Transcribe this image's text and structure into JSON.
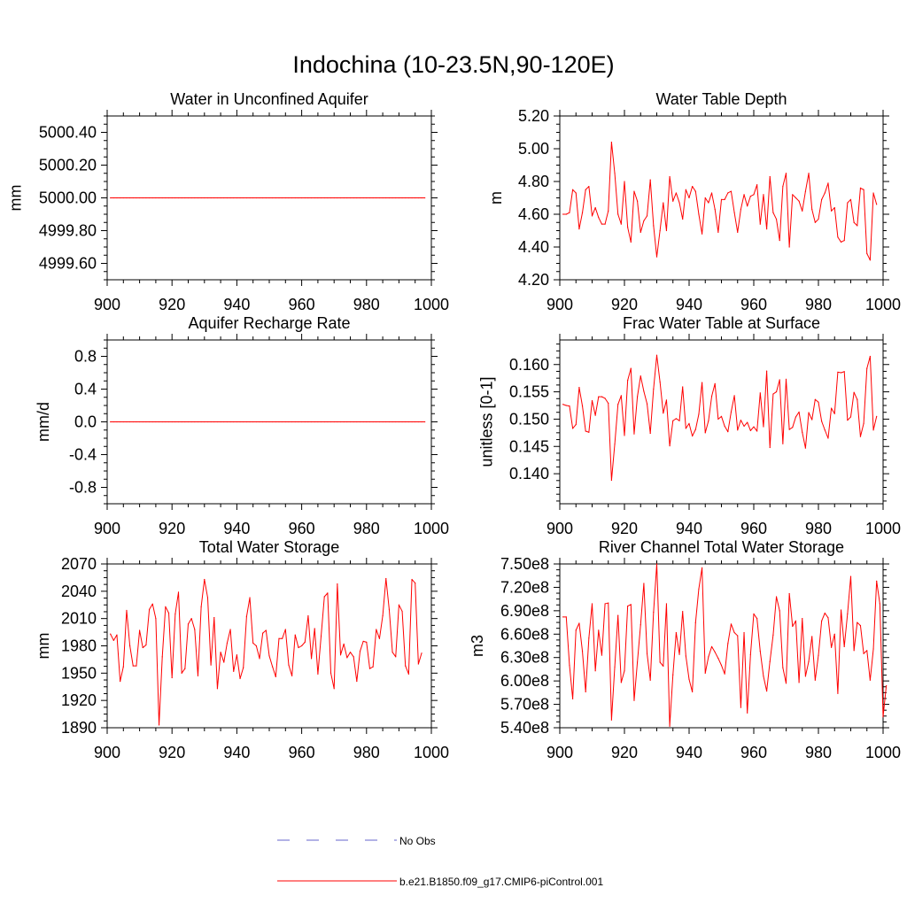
{
  "title": "Indochina (10-23.5N,90-120E)",
  "colors": {
    "model": "#ff0000",
    "obs": "#6666cc",
    "axis": "#000000"
  },
  "legend": {
    "items": [
      {
        "label": "No Obs",
        "style": "dashed",
        "color": "#6666cc"
      },
      {
        "label": "b.e21.B1850.f09_g17.CMIP6-piControl.001",
        "style": "solid",
        "color": "#ff0000"
      }
    ]
  },
  "chart_data": [
    {
      "type": "line",
      "title": "Water in Unconfined Aquifer",
      "ylabel": "mm",
      "xlim": [
        900,
        1000
      ],
      "ylim": [
        4999.5,
        5000.5
      ],
      "xticks": [
        900,
        920,
        940,
        960,
        980,
        1000
      ],
      "yticks": [
        4999.6,
        4999.8,
        5000.0,
        5000.2,
        5000.4
      ],
      "ytick_labels": [
        "4999.60",
        "4999.80",
        "5000.00",
        "5000.20",
        "5000.40"
      ],
      "x_start": 901,
      "values": [
        5000,
        5000,
        5000,
        5000,
        5000,
        5000,
        5000,
        5000,
        5000,
        5000,
        5000,
        5000,
        5000,
        5000,
        5000,
        5000,
        5000,
        5000,
        5000,
        5000,
        5000,
        5000,
        5000,
        5000,
        5000,
        5000,
        5000,
        5000,
        5000,
        5000,
        5000,
        5000,
        5000,
        5000,
        5000,
        5000,
        5000,
        5000,
        5000,
        5000,
        5000,
        5000,
        5000,
        5000,
        5000,
        5000,
        5000,
        5000,
        5000,
        5000,
        5000,
        5000,
        5000,
        5000,
        5000,
        5000,
        5000,
        5000,
        5000,
        5000,
        5000,
        5000,
        5000,
        5000,
        5000,
        5000,
        5000,
        5000,
        5000,
        5000,
        5000,
        5000,
        5000,
        5000,
        5000,
        5000,
        5000,
        5000,
        5000,
        5000,
        5000,
        5000,
        5000,
        5000,
        5000,
        5000,
        5000,
        5000,
        5000,
        5000,
        5000,
        5000,
        5000,
        5000,
        5000,
        5000,
        5000,
        5000
      ]
    },
    {
      "type": "line",
      "title": "Water Table Depth",
      "ylabel": "m",
      "xlim": [
        900,
        1000
      ],
      "ylim": [
        4.2,
        5.2
      ],
      "xticks": [
        900,
        920,
        940,
        960,
        980,
        1000
      ],
      "yticks": [
        4.2,
        4.4,
        4.6,
        4.8,
        5.0,
        5.2
      ],
      "ytick_labels": [
        "4.20",
        "4.40",
        "4.60",
        "4.80",
        "5.00",
        "5.20"
      ],
      "x_start": 901,
      "values": [
        4.6,
        4.6,
        4.61,
        4.75,
        4.73,
        4.51,
        4.61,
        4.75,
        4.77,
        4.59,
        4.64,
        4.58,
        4.54,
        4.54,
        4.62,
        5.04,
        4.85,
        4.6,
        4.54,
        4.8,
        4.52,
        4.43,
        4.74,
        4.68,
        4.49,
        4.56,
        4.59,
        4.81,
        4.53,
        4.34,
        4.5,
        4.67,
        4.5,
        4.83,
        4.68,
        4.73,
        4.67,
        4.57,
        4.75,
        4.7,
        4.77,
        4.74,
        4.6,
        4.48,
        4.7,
        4.67,
        4.73,
        4.63,
        4.49,
        4.69,
        4.69,
        4.73,
        4.74,
        4.61,
        4.49,
        4.63,
        4.72,
        4.65,
        4.71,
        4.72,
        4.78,
        4.54,
        4.72,
        4.51,
        4.83,
        4.61,
        4.57,
        4.44,
        4.77,
        4.85,
        4.4,
        4.72,
        4.7,
        4.68,
        4.62,
        4.74,
        4.85,
        4.63,
        4.55,
        4.57,
        4.69,
        4.73,
        4.79,
        4.62,
        4.64,
        4.46,
        4.43,
        4.44,
        4.67,
        4.69,
        4.55,
        4.53,
        4.76,
        4.75,
        4.36,
        4.32,
        4.73,
        4.66
      ]
    },
    {
      "type": "line",
      "title": "Aquifer Recharge Rate",
      "ylabel": "mm/d",
      "xlim": [
        900,
        1000
      ],
      "ylim": [
        -1.0,
        1.0
      ],
      "xticks": [
        900,
        920,
        940,
        960,
        980,
        1000
      ],
      "yticks": [
        -0.8,
        -0.4,
        0.0,
        0.4,
        0.8
      ],
      "ytick_labels": [
        "-0.8",
        "-0.4",
        "0.0",
        "0.4",
        "0.8"
      ],
      "x_start": 901,
      "values": [
        0,
        0,
        0,
        0,
        0,
        0,
        0,
        0,
        0,
        0,
        0,
        0,
        0,
        0,
        0,
        0,
        0,
        0,
        0,
        0,
        0,
        0,
        0,
        0,
        0,
        0,
        0,
        0,
        0,
        0,
        0,
        0,
        0,
        0,
        0,
        0,
        0,
        0,
        0,
        0,
        0,
        0,
        0,
        0,
        0,
        0,
        0,
        0,
        0,
        0,
        0,
        0,
        0,
        0,
        0,
        0,
        0,
        0,
        0,
        0,
        0,
        0,
        0,
        0,
        0,
        0,
        0,
        0,
        0,
        0,
        0,
        0,
        0,
        0,
        0,
        0,
        0,
        0,
        0,
        0,
        0,
        0,
        0,
        0,
        0,
        0,
        0,
        0,
        0,
        0,
        0,
        0,
        0,
        0,
        0,
        0,
        0,
        0
      ]
    },
    {
      "type": "line",
      "title": "Frac Water Table at Surface",
      "ylabel": "unitless [0-1]",
      "xlim": [
        900,
        1000
      ],
      "ylim": [
        0.1345,
        0.1645
      ],
      "xticks": [
        900,
        920,
        940,
        960,
        980,
        1000
      ],
      "yticks": [
        0.14,
        0.145,
        0.15,
        0.155,
        0.16
      ],
      "ytick_labels": [
        "0.140",
        "0.145",
        "0.150",
        "0.155",
        "0.160"
      ],
      "x_start": 901,
      "values": [
        0.1527,
        0.1525,
        0.1524,
        0.1483,
        0.149,
        0.1558,
        0.1524,
        0.1478,
        0.1476,
        0.1534,
        0.1507,
        0.1541,
        0.1541,
        0.1538,
        0.1529,
        0.1388,
        0.1454,
        0.1527,
        0.1543,
        0.147,
        0.1571,
        0.1593,
        0.1473,
        0.1541,
        0.1579,
        0.1551,
        0.1528,
        0.1474,
        0.1555,
        0.1617,
        0.1568,
        0.1511,
        0.1535,
        0.1451,
        0.1497,
        0.1501,
        0.1497,
        0.1559,
        0.1483,
        0.1492,
        0.1469,
        0.1481,
        0.1509,
        0.1567,
        0.1475,
        0.1497,
        0.1542,
        0.1565,
        0.15,
        0.1505,
        0.1487,
        0.1477,
        0.1513,
        0.1543,
        0.148,
        0.1498,
        0.1487,
        0.1494,
        0.1479,
        0.1486,
        0.1478,
        0.1548,
        0.1486,
        0.1588,
        0.1448,
        0.1546,
        0.155,
        0.1572,
        0.1455,
        0.1573,
        0.1481,
        0.1485,
        0.1504,
        0.1513,
        0.1476,
        0.1447,
        0.1512,
        0.1499,
        0.1536,
        0.1531,
        0.1496,
        0.148,
        0.1465,
        0.152,
        0.151,
        0.1586,
        0.1585,
        0.1587,
        0.1498,
        0.1504,
        0.1549,
        0.1536,
        0.1468,
        0.1492,
        0.1593,
        0.1615,
        0.148,
        0.1505
      ]
    },
    {
      "type": "line",
      "title": "Total Water Storage",
      "ylabel": "mm",
      "xlim": [
        900,
        1000
      ],
      "ylim": [
        1890,
        2070
      ],
      "xticks": [
        900,
        920,
        940,
        960,
        980,
        1000
      ],
      "yticks": [
        1890,
        1920,
        1950,
        1980,
        2010,
        2040,
        2070
      ],
      "ytick_labels": [
        "1890",
        "1920",
        "1950",
        "1980",
        "2010",
        "2040",
        "2070"
      ],
      "x_start": 901,
      "values": [
        1993,
        1986,
        1992,
        1941,
        1957,
        2019,
        1980,
        1958,
        1958,
        1997,
        1978,
        1981,
        2020,
        2026,
        2010,
        1893,
        1968,
        2023,
        2016,
        1945,
        2015,
        2039,
        1950,
        1955,
        2004,
        2010,
        1998,
        1947,
        2023,
        2053,
        2033,
        1959,
        2011,
        1933,
        1973,
        1962,
        1983,
        1998,
        1952,
        1970,
        1944,
        1956,
        2012,
        2033,
        1983,
        1980,
        1966,
        1994,
        1997,
        1969,
        1957,
        1946,
        1988,
        1988,
        1998,
        1959,
        1947,
        1992,
        1978,
        1980,
        1984,
        2013,
        1966,
        1999,
        1949,
        1991,
        2034,
        2038,
        1950,
        1933,
        2048,
        1970,
        1982,
        1967,
        1973,
        1968,
        1941,
        1974,
        1985,
        1984,
        1955,
        1957,
        1998,
        1988,
        2013,
        2054,
        2020,
        1973,
        1968,
        2025,
        2018,
        1958,
        1949,
        2053,
        2049,
        1960,
        1972
      ]
    },
    {
      "type": "line",
      "title": "River Channel Total Water Storage",
      "ylabel": "m3",
      "xlim": [
        900,
        1000
      ],
      "ylim": [
        540000000.0,
        750000000.0
      ],
      "xticks": [
        900,
        920,
        940,
        960,
        980,
        1000
      ],
      "yticks": [
        540000000.0,
        570000000.0,
        600000000.0,
        630000000.0,
        660000000.0,
        690000000.0,
        720000000.0,
        750000000.0
      ],
      "ytick_labels": [
        "5.40e8",
        "5.70e8",
        "6.00e8",
        "6.30e8",
        "6.60e8",
        "6.90e8",
        "7.20e8",
        "7.50e8"
      ],
      "x_start": 901,
      "values": [
        682000000.0,
        682000000.0,
        620000000.0,
        577000000.0,
        665000000.0,
        674000000.0,
        638000000.0,
        586000000.0,
        655000000.0,
        699000000.0,
        613000000.0,
        665000000.0,
        633000000.0,
        699000000.0,
        700000000.0,
        550000000.0,
        618000000.0,
        684000000.0,
        598000000.0,
        613000000.0,
        696000000.0,
        698000000.0,
        575000000.0,
        624000000.0,
        672000000.0,
        725000000.0,
        635000000.0,
        601000000.0,
        688000000.0,
        750000000.0,
        624000000.0,
        619000000.0,
        699000000.0,
        542000000.0,
        608000000.0,
        662000000.0,
        634000000.0,
        689000000.0,
        632000000.0,
        602000000.0,
        586000000.0,
        675000000.0,
        718000000.0,
        745000000.0,
        610000000.0,
        631000000.0,
        644000000.0,
        637000000.0,
        629000000.0,
        620000000.0,
        609000000.0,
        648000000.0,
        673000000.0,
        662000000.0,
        658000000.0,
        566000000.0,
        662000000.0,
        559000000.0,
        634000000.0,
        686000000.0,
        680000000.0,
        638000000.0,
        606000000.0,
        587000000.0,
        625000000.0,
        659000000.0,
        708000000.0,
        690000000.0,
        617000000.0,
        597000000.0,
        712000000.0,
        670000000.0,
        677000000.0,
        598000000.0,
        680000000.0,
        606000000.0,
        625000000.0,
        657000000.0,
        601000000.0,
        633000000.0,
        677000000.0,
        687000000.0,
        681000000.0,
        643000000.0,
        660000000.0,
        584000000.0,
        691000000.0,
        644000000.0,
        686000000.0,
        734000000.0,
        639000000.0,
        675000000.0,
        671000000.0,
        635000000.0,
        639000000.0,
        601000000.0,
        641000000.0,
        728000000.0,
        699000000.0,
        554000000.0,
        594000000.0
      ]
    }
  ]
}
